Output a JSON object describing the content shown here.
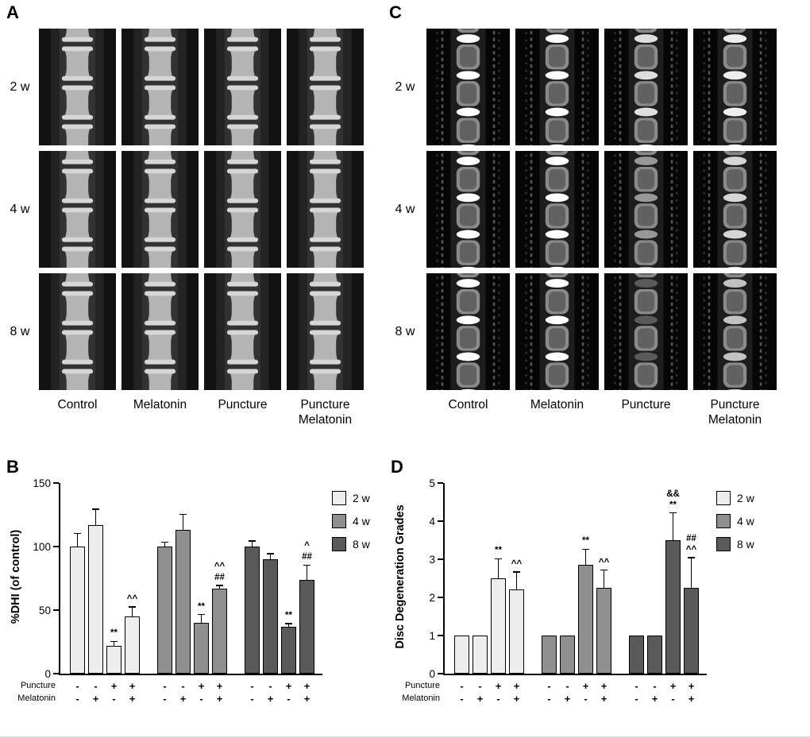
{
  "panels": {
    "A": {
      "letter": "A",
      "rows": [
        "2 w",
        "4 w",
        "8 w"
      ],
      "cols": [
        "Control",
        "Melatonin",
        "Puncture",
        "Puncture\nMelatonin"
      ]
    },
    "C": {
      "letter": "C",
      "rows": [
        "2 w",
        "4 w",
        "8 w"
      ],
      "cols": [
        "Control",
        "Melatonin",
        "Puncture",
        "Puncture\nMelatonin"
      ]
    },
    "B": {
      "letter": "B"
    },
    "D": {
      "letter": "D"
    }
  },
  "chart_data": [
    {
      "panel": "B",
      "type": "bar",
      "title": "",
      "ylabel": "%DHI (of control)",
      "xlabel": "",
      "ylim": [
        0,
        150
      ],
      "yticks": [
        0,
        50,
        100,
        150
      ],
      "grid": false,
      "legend_position": "right",
      "legend": [
        {
          "label": "2 w",
          "color": "#ededed"
        },
        {
          "label": "4 w",
          "color": "#8f8f8f"
        },
        {
          "label": "8 w",
          "color": "#595959"
        }
      ],
      "xaxis_rows": [
        "Puncture",
        "Melatonin"
      ],
      "groups": [
        {
          "timepoint": "2 w",
          "color": "#ededed",
          "bars": [
            {
              "condition": "Control",
              "puncture": "-",
              "melatonin": "-",
              "value": 100,
              "error": 10,
              "annotation": []
            },
            {
              "condition": "Melatonin",
              "puncture": "-",
              "melatonin": "+",
              "value": 117,
              "error": 12,
              "annotation": []
            },
            {
              "condition": "Puncture",
              "puncture": "+",
              "melatonin": "-",
              "value": 22,
              "error": 3,
              "annotation": [
                "**"
              ]
            },
            {
              "condition": "Puncture+Melatonin",
              "puncture": "+",
              "melatonin": "+",
              "value": 45,
              "error": 7,
              "annotation": [
                "^^"
              ]
            }
          ]
        },
        {
          "timepoint": "4 w",
          "color": "#8f8f8f",
          "bars": [
            {
              "condition": "Control",
              "puncture": "-",
              "melatonin": "-",
              "value": 100,
              "error": 3,
              "annotation": []
            },
            {
              "condition": "Melatonin",
              "puncture": "-",
              "melatonin": "+",
              "value": 113,
              "error": 12,
              "annotation": []
            },
            {
              "condition": "Puncture",
              "puncture": "+",
              "melatonin": "-",
              "value": 40,
              "error": 6,
              "annotation": [
                "**"
              ]
            },
            {
              "condition": "Puncture+Melatonin",
              "puncture": "+",
              "melatonin": "+",
              "value": 67,
              "error": 2,
              "annotation": [
                "^^",
                "##"
              ]
            }
          ]
        },
        {
          "timepoint": "8 w",
          "color": "#595959",
          "bars": [
            {
              "condition": "Control",
              "puncture": "-",
              "melatonin": "-",
              "value": 100,
              "error": 4,
              "annotation": []
            },
            {
              "condition": "Melatonin",
              "puncture": "-",
              "melatonin": "+",
              "value": 90,
              "error": 4,
              "annotation": []
            },
            {
              "condition": "Puncture",
              "puncture": "+",
              "melatonin": "-",
              "value": 37,
              "error": 2,
              "annotation": [
                "**"
              ]
            },
            {
              "condition": "Puncture+Melatonin",
              "puncture": "+",
              "melatonin": "+",
              "value": 74,
              "error": 11,
              "annotation": [
                "^",
                "##"
              ]
            }
          ]
        }
      ]
    },
    {
      "panel": "D",
      "type": "bar",
      "title": "",
      "ylabel": "Disc Degeneration Grades",
      "xlabel": "",
      "ylim": [
        0,
        5
      ],
      "yticks": [
        0,
        1,
        2,
        3,
        4,
        5
      ],
      "grid": false,
      "legend_position": "right",
      "legend": [
        {
          "label": "2 w",
          "color": "#ededed"
        },
        {
          "label": "4 w",
          "color": "#8f8f8f"
        },
        {
          "label": "8 w",
          "color": "#595959"
        }
      ],
      "xaxis_rows": [
        "Puncture",
        "Melatonin"
      ],
      "groups": [
        {
          "timepoint": "2 w",
          "color": "#ededed",
          "bars": [
            {
              "condition": "Control",
              "puncture": "-",
              "melatonin": "-",
              "value": 1,
              "error": 0,
              "annotation": []
            },
            {
              "condition": "Melatonin",
              "puncture": "-",
              "melatonin": "+",
              "value": 1,
              "error": 0,
              "annotation": []
            },
            {
              "condition": "Puncture",
              "puncture": "+",
              "melatonin": "-",
              "value": 2.5,
              "error": 0.5,
              "annotation": [
                "**"
              ]
            },
            {
              "condition": "Puncture+Melatonin",
              "puncture": "+",
              "melatonin": "+",
              "value": 2.2,
              "error": 0.45,
              "annotation": [
                "^^"
              ]
            }
          ]
        },
        {
          "timepoint": "4 w",
          "color": "#8f8f8f",
          "bars": [
            {
              "condition": "Control",
              "puncture": "-",
              "melatonin": "-",
              "value": 1,
              "error": 0,
              "annotation": []
            },
            {
              "condition": "Melatonin",
              "puncture": "-",
              "melatonin": "+",
              "value": 1,
              "error": 0,
              "annotation": []
            },
            {
              "condition": "Puncture",
              "puncture": "+",
              "melatonin": "-",
              "value": 2.85,
              "error": 0.4,
              "annotation": [
                "**"
              ]
            },
            {
              "condition": "Puncture+Melatonin",
              "puncture": "+",
              "melatonin": "+",
              "value": 2.25,
              "error": 0.45,
              "annotation": [
                "^^"
              ]
            }
          ]
        },
        {
          "timepoint": "8 w",
          "color": "#595959",
          "bars": [
            {
              "condition": "Control",
              "puncture": "-",
              "melatonin": "-",
              "value": 1,
              "error": 0,
              "annotation": []
            },
            {
              "condition": "Melatonin",
              "puncture": "-",
              "melatonin": "+",
              "value": 1,
              "error": 0,
              "annotation": []
            },
            {
              "condition": "Puncture",
              "puncture": "+",
              "melatonin": "-",
              "value": 3.5,
              "error": 0.7,
              "annotation": [
                "&&",
                "**"
              ]
            },
            {
              "condition": "Puncture+Melatonin",
              "puncture": "+",
              "melatonin": "+",
              "value": 2.25,
              "error": 0.78,
              "annotation": [
                "##",
                "^^"
              ]
            }
          ]
        }
      ]
    }
  ]
}
